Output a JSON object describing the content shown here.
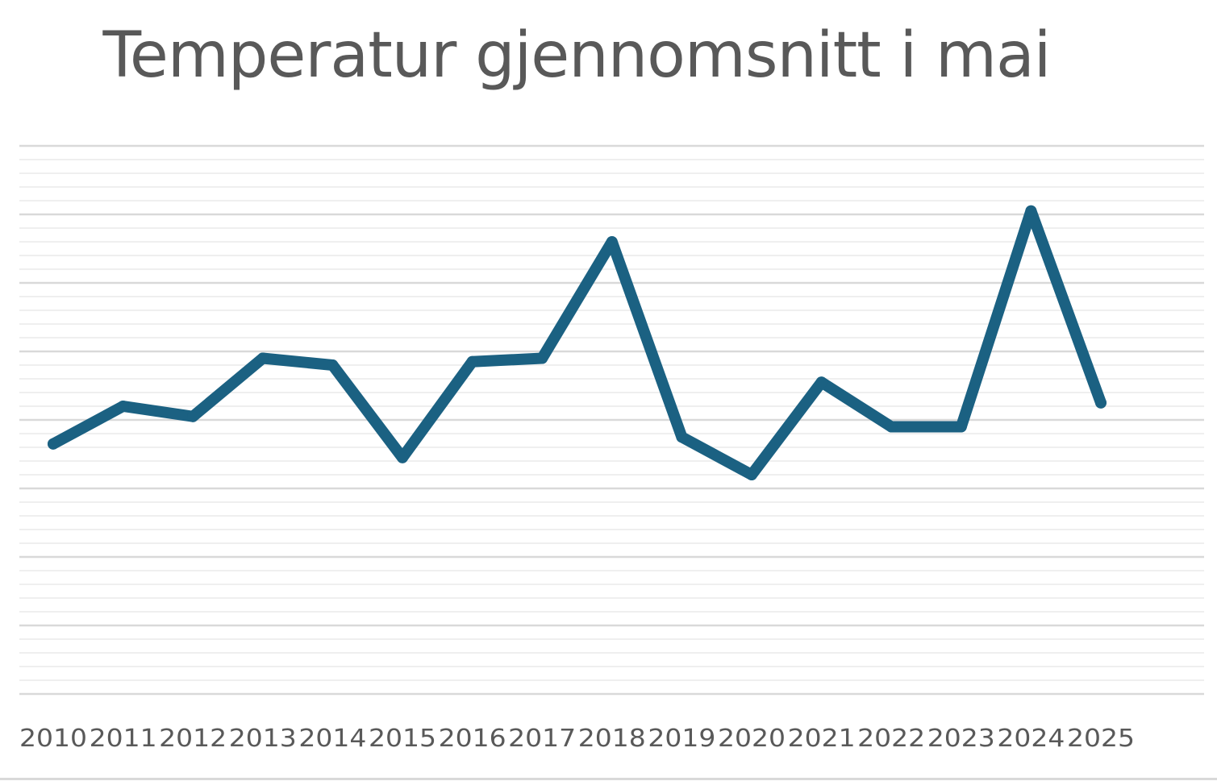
{
  "chart_data": {
    "type": "line",
    "title": "Temperatur gjennomsnitt i mai",
    "xlabel": "",
    "ylabel": "",
    "categories": [
      "2010",
      "2011",
      "2012",
      "2013",
      "2014",
      "2015",
      "2016",
      "2017",
      "2018",
      "2019",
      "2020",
      "2021",
      "2022",
      "2023",
      "2024",
      "2025"
    ],
    "series": [
      {
        "values": [
          9.3,
          10.4,
          10.1,
          11.8,
          11.6,
          8.9,
          11.7,
          11.8,
          15.2,
          9.5,
          8.4,
          11.1,
          9.8,
          9.8,
          16.1,
          10.5
        ]
      }
    ],
    "ylim": [
      2,
      18
    ],
    "grid": true,
    "legend": "none",
    "colors": {
      "line": "#1b6182",
      "major_grid": "#d9d9d9",
      "minor_grid": "#efefef",
      "text": "#595959"
    }
  }
}
